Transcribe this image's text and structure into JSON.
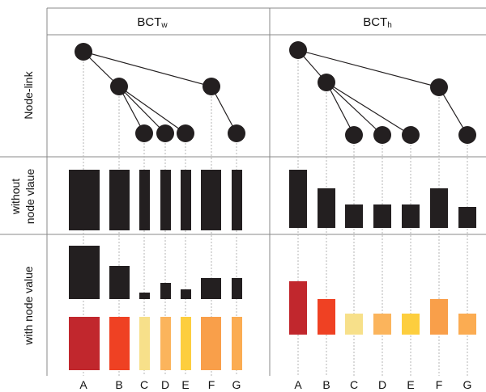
{
  "columns": {
    "left": {
      "base": "BCT",
      "sub": "w"
    },
    "right": {
      "base": "BCT",
      "sub": "h"
    }
  },
  "rows": {
    "node_link": {
      "label": "Node-link"
    },
    "without": {
      "line1": "without",
      "line2": "node vlaue"
    },
    "with": {
      "label": "with node value"
    }
  },
  "leaf_labels": [
    "A",
    "B",
    "C",
    "D",
    "E",
    "F",
    "G"
  ],
  "colors": {
    "black": "#231f20",
    "A": "#c1272d",
    "B": "#ef4123",
    "C": "#f7e08a",
    "D": "#fbb45c",
    "E": "#fdce3e",
    "F": "#f99f4a",
    "G": "#fbac52"
  }
}
